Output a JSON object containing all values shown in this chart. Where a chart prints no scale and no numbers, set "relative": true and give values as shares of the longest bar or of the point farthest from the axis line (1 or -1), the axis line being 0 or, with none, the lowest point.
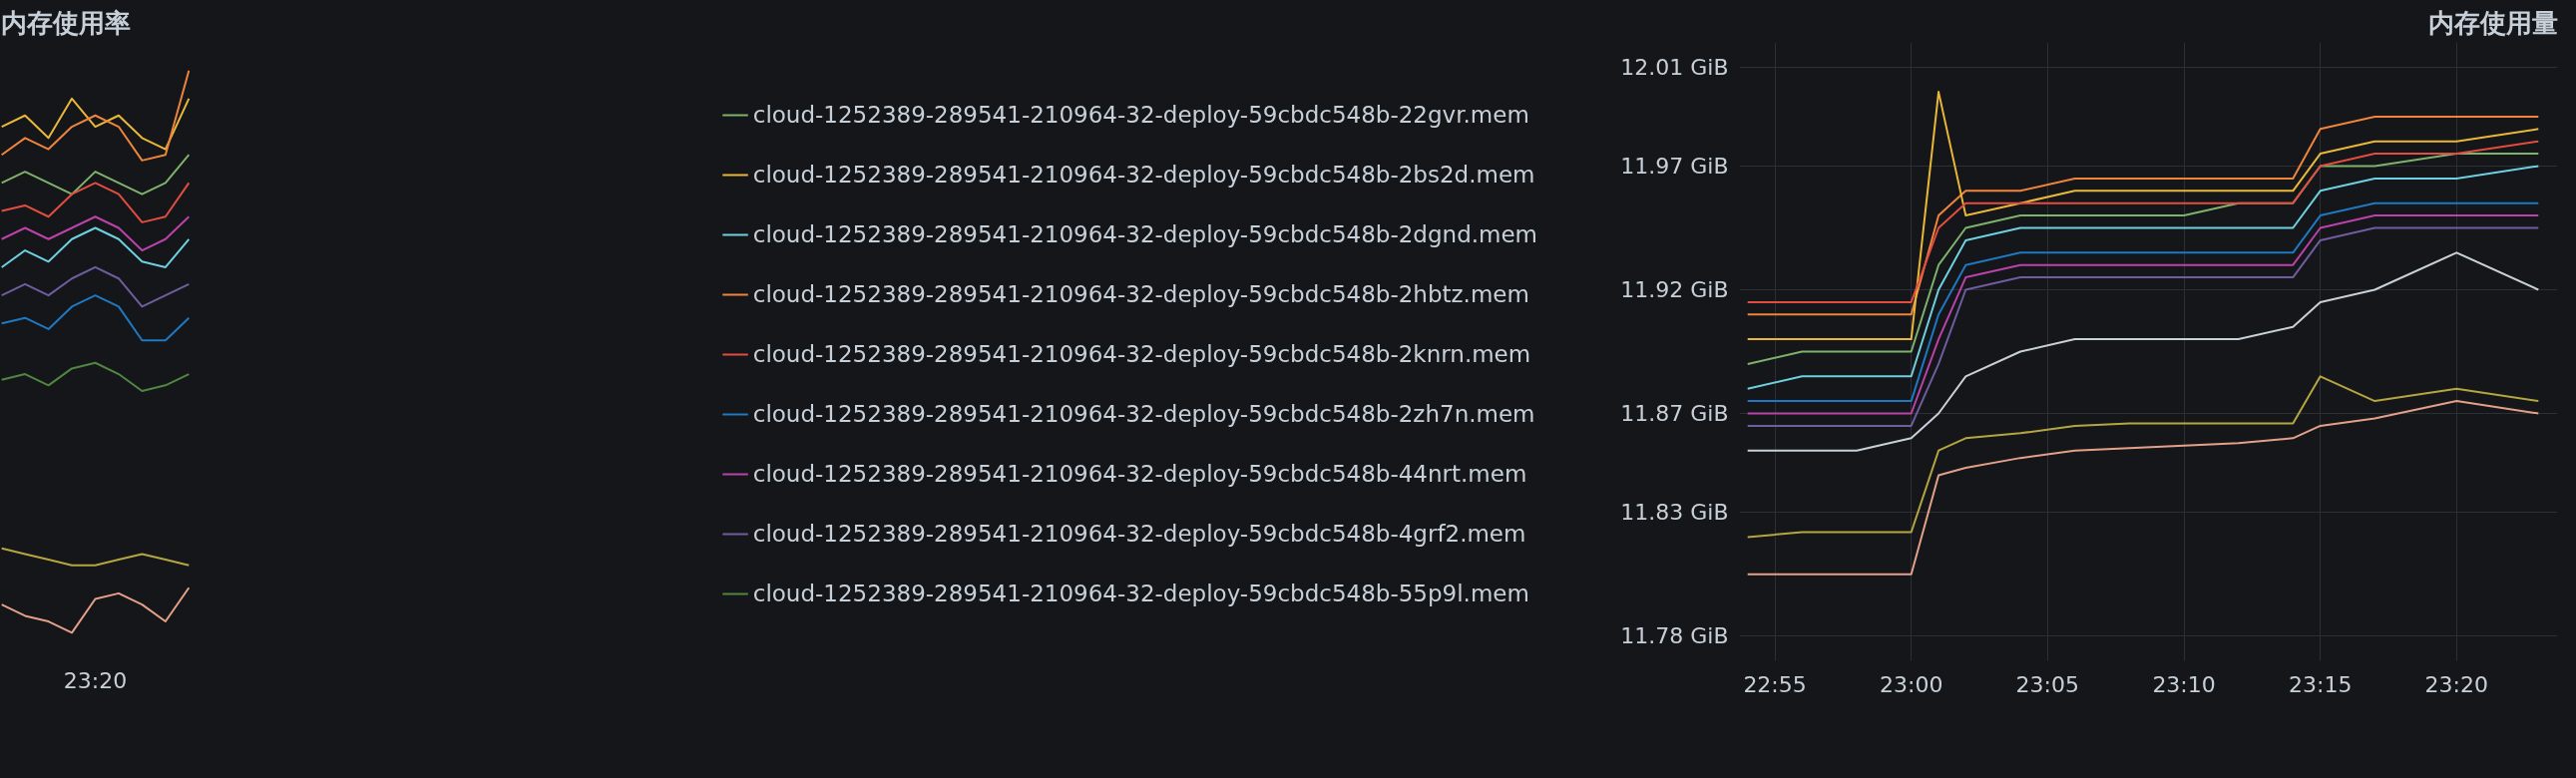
{
  "chart_data": [
    {
      "type": "line",
      "title": "内存使用率",
      "relative": true,
      "legend": "right",
      "annotations": [
        "23:20"
      ],
      "categories": [
        null,
        null,
        null,
        null,
        null,
        null,
        null,
        null,
        null
      ],
      "series": [
        {
          "name": "cloud-1252389-289541-210964-32-deploy-59cbdc548b-22gvr.mem",
          "color": "#7eb26d",
          "values": [
            0.8,
            0.82,
            0.8,
            0.78,
            0.82,
            0.8,
            0.78,
            0.8,
            0.85
          ]
        },
        {
          "name": "cloud-1252389-289541-210964-32-deploy-59cbdc548b-2bs2d.mem",
          "color": "#eab839",
          "values": [
            0.9,
            0.92,
            0.88,
            0.95,
            0.9,
            0.92,
            0.88,
            0.86,
            0.95
          ]
        },
        {
          "name": "cloud-1252389-289541-210964-32-deploy-59cbdc548b-2dgnd.mem",
          "color": "#6ed0e0",
          "values": [
            0.65,
            0.68,
            0.66,
            0.7,
            0.72,
            0.7,
            0.66,
            0.65,
            0.7
          ]
        },
        {
          "name": "cloud-1252389-289541-210964-32-deploy-59cbdc548b-2hbtz.mem",
          "color": "#ef843c",
          "values": [
            0.85,
            0.88,
            0.86,
            0.9,
            0.92,
            0.9,
            0.84,
            0.85,
            1.0
          ]
        },
        {
          "name": "cloud-1252389-289541-210964-32-deploy-59cbdc548b-2knrn.mem",
          "color": "#e24d42",
          "values": [
            0.75,
            0.76,
            0.74,
            0.78,
            0.8,
            0.78,
            0.73,
            0.74,
            0.8
          ]
        },
        {
          "name": "cloud-1252389-289541-210964-32-deploy-59cbdc548b-2zh7n.mem",
          "color": "#1f78c1",
          "values": [
            0.55,
            0.56,
            0.54,
            0.58,
            0.6,
            0.58,
            0.52,
            0.52,
            0.56
          ]
        },
        {
          "name": "cloud-1252389-289541-210964-32-deploy-59cbdc548b-44nrt.mem",
          "color": "#ba43a9",
          "values": [
            0.7,
            0.72,
            0.7,
            0.72,
            0.74,
            0.72,
            0.68,
            0.7,
            0.74
          ]
        },
        {
          "name": "cloud-1252389-289541-210964-32-deploy-59cbdc548b-4grf2.mem",
          "color": "#705da0",
          "values": [
            0.6,
            0.62,
            0.6,
            0.63,
            0.65,
            0.63,
            0.58,
            0.6,
            0.62
          ]
        },
        {
          "name": "cloud-1252389-289541-210964-32-deploy-59cbdc548b-55p9l.mem",
          "color": "#508642",
          "values": [
            0.45,
            0.46,
            0.44,
            0.47,
            0.48,
            0.46,
            0.43,
            0.44,
            0.46
          ]
        },
        {
          "color": "#b5a642",
          "values": [
            0.15,
            0.14,
            0.13,
            0.12,
            0.12,
            0.13,
            0.14,
            0.13,
            0.12
          ]
        },
        {
          "color": "#e5a08a",
          "values": [
            0.05,
            0.03,
            0.02,
            0.0,
            0.06,
            0.07,
            0.05,
            0.02,
            0.08
          ]
        }
      ]
    },
    {
      "type": "line",
      "title": "内存使用量",
      "grid": true,
      "xlim": [
        22.895,
        23.395
      ],
      "ylim": [
        11.77,
        12.02
      ],
      "xticks": [
        {
          "value": 22.9167,
          "label": "22:55"
        },
        {
          "value": 23.0,
          "label": "23:00"
        },
        {
          "value": 23.0833,
          "label": "23:05"
        },
        {
          "value": 23.1667,
          "label": "23:10"
        },
        {
          "value": 23.25,
          "label": "23:15"
        },
        {
          "value": 23.3333,
          "label": "23:20"
        }
      ],
      "yticks": [
        {
          "value": 11.78,
          "label": "11.78 GiB"
        },
        {
          "value": 11.83,
          "label": "11.83 GiB"
        },
        {
          "value": 11.87,
          "label": "11.87 GiB"
        },
        {
          "value": 11.92,
          "label": "11.92 GiB"
        },
        {
          "value": 11.97,
          "label": "11.97 GiB"
        },
        {
          "value": 12.01,
          "label": "12.01 GiB"
        }
      ],
      "x": [
        22.9,
        22.9333,
        22.9667,
        23.0,
        23.0167,
        23.0333,
        23.0667,
        23.1,
        23.1333,
        23.1667,
        23.2,
        23.2333,
        23.25,
        23.2833,
        23.3333,
        23.3833
      ],
      "series": [
        {
          "color": "#ef843c",
          "values": [
            11.91,
            11.91,
            11.91,
            11.91,
            11.95,
            11.96,
            11.96,
            11.965,
            11.965,
            11.965,
            11.965,
            11.965,
            11.985,
            11.99,
            11.99,
            11.99
          ]
        },
        {
          "color": "#eab839",
          "values": [
            11.9,
            11.9,
            11.9,
            11.9,
            12.0,
            11.95,
            11.955,
            11.96,
            11.96,
            11.96,
            11.96,
            11.96,
            11.975,
            11.98,
            11.98,
            11.985
          ]
        },
        {
          "color": "#7eb26d",
          "values": [
            11.89,
            11.895,
            11.895,
            11.895,
            11.93,
            11.945,
            11.95,
            11.95,
            11.95,
            11.95,
            11.955,
            11.955,
            11.97,
            11.97,
            11.975,
            11.975
          ]
        },
        {
          "color": "#6ed0e0",
          "values": [
            11.88,
            11.885,
            11.885,
            11.885,
            11.92,
            11.94,
            11.945,
            11.945,
            11.945,
            11.945,
            11.945,
            11.945,
            11.96,
            11.965,
            11.965,
            11.97
          ]
        },
        {
          "color": "#e24d42",
          "values": [
            11.915,
            11.915,
            11.915,
            11.915,
            11.945,
            11.955,
            11.955,
            11.955,
            11.955,
            11.955,
            11.955,
            11.955,
            11.97,
            11.975,
            11.975,
            11.98
          ]
        },
        {
          "color": "#1f78c1",
          "values": [
            11.875,
            11.875,
            11.875,
            11.875,
            11.91,
            11.93,
            11.935,
            11.935,
            11.935,
            11.935,
            11.935,
            11.935,
            11.95,
            11.955,
            11.955,
            11.955
          ]
        },
        {
          "color": "#ba43a9",
          "values": [
            11.87,
            11.87,
            11.87,
            11.87,
            11.9,
            11.925,
            11.93,
            11.93,
            11.93,
            11.93,
            11.93,
            11.93,
            11.945,
            11.95,
            11.95,
            11.95
          ]
        },
        {
          "color": "#705da0",
          "values": [
            11.865,
            11.865,
            11.865,
            11.865,
            11.89,
            11.92,
            11.925,
            11.925,
            11.925,
            11.925,
            11.925,
            11.925,
            11.94,
            11.945,
            11.945,
            11.945
          ]
        },
        {
          "color": "#c8d0d8",
          "values": [
            11.855,
            11.855,
            11.855,
            11.86,
            11.87,
            11.885,
            11.895,
            11.9,
            11.9,
            11.9,
            11.9,
            11.905,
            11.915,
            11.92,
            11.935,
            11.92
          ]
        },
        {
          "color": "#b5a642",
          "values": [
            11.82,
            11.822,
            11.822,
            11.822,
            11.855,
            11.86,
            11.862,
            11.865,
            11.866,
            11.866,
            11.866,
            11.866,
            11.885,
            11.875,
            11.88,
            11.875
          ]
        },
        {
          "color": "#e5a08a",
          "values": [
            11.805,
            11.805,
            11.805,
            11.805,
            11.845,
            11.848,
            11.852,
            11.855,
            11.856,
            11.857,
            11.858,
            11.86,
            11.865,
            11.868,
            11.875,
            11.87
          ]
        }
      ]
    }
  ]
}
